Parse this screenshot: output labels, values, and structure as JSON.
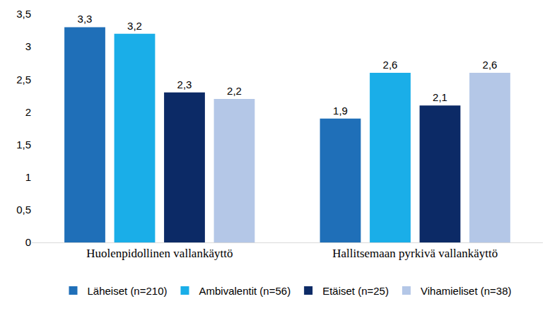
{
  "chart_data": {
    "type": "bar",
    "categories": [
      "Huolenpidollinen vallankäyttö",
      "Hallitsemaan pyrkivä vallankäyttö"
    ],
    "series": [
      {
        "name": "Läheiset (n=210)",
        "color": "#1f6fb8",
        "values": [
          3.3,
          1.9
        ],
        "value_labels": [
          "3,3",
          "1,9"
        ]
      },
      {
        "name": "Ambivalentit (n=56)",
        "color": "#1aaee8",
        "values": [
          3.2,
          2.6
        ],
        "value_labels": [
          "3,2",
          "2,6"
        ]
      },
      {
        "name": "Etäiset (n=25)",
        "color": "#0c2a66",
        "values": [
          2.3,
          2.1
        ],
        "value_labels": [
          "2,3",
          "2,1"
        ]
      },
      {
        "name": "Vihamieliset (n=38)",
        "color": "#b4c7e7",
        "values": [
          2.2,
          2.6
        ],
        "value_labels": [
          "2,2",
          "2,6"
        ]
      }
    ],
    "ylim": [
      0,
      3.5
    ],
    "yticks": [
      0,
      {
        "value": 0.5,
        "label": "0,5"
      },
      1,
      {
        "value": 1.5,
        "label": "1,5"
      },
      2,
      {
        "value": 2.5,
        "label": "2,5"
      },
      3,
      {
        "value": 3.5,
        "label": "3,5"
      }
    ],
    "grid": false,
    "legend": "bottom",
    "data_labels": true
  }
}
